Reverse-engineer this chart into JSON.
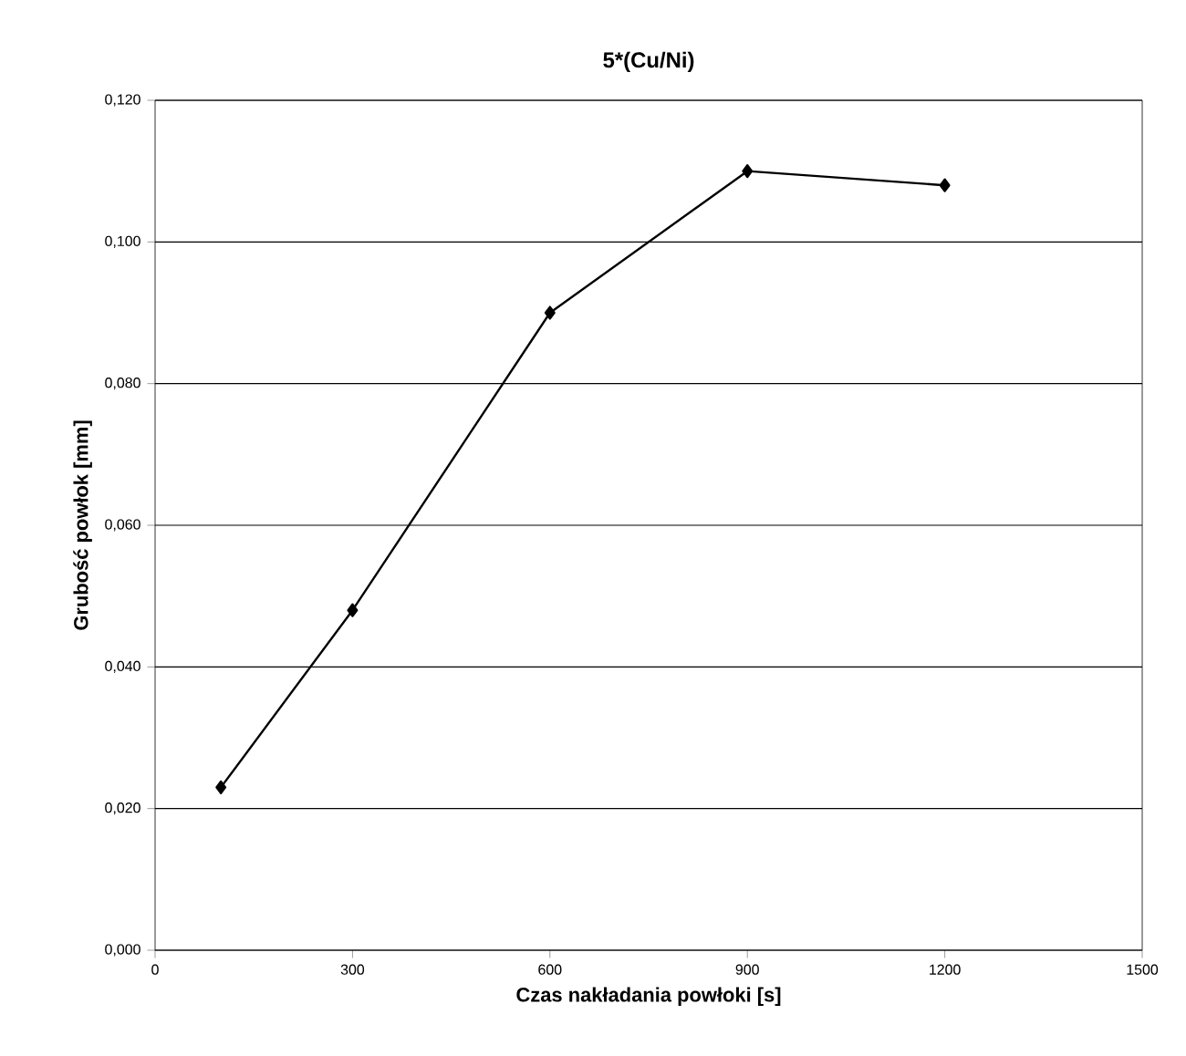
{
  "chart_data": {
    "type": "line",
    "title": "5*(Cu/Ni)",
    "xlabel": "Czas nakładania powłoki [s]",
    "ylabel": "Grubość powłok [mm]",
    "x": [
      100,
      300,
      600,
      900,
      1200
    ],
    "series": [
      {
        "color": "#000000",
        "values": [
          0.023,
          0.048,
          0.09,
          0.11,
          0.108
        ]
      }
    ],
    "xlim": [
      0,
      1500
    ],
    "xticks": [
      0,
      300,
      600,
      900,
      1200,
      1500
    ],
    "ylim": [
      0,
      0.12
    ],
    "yticks": [
      {
        "value": 0,
        "label": "0,000"
      },
      {
        "value": 0.02,
        "label": "0,020"
      },
      {
        "value": 0.04,
        "label": "0,040"
      },
      {
        "value": 0.06,
        "label": "0,060"
      },
      {
        "value": 0.08,
        "label": "0,080"
      },
      {
        "value": 0.1,
        "label": "0,100"
      },
      {
        "value": 0.12,
        "label": "0,120"
      }
    ],
    "grid": "y",
    "marker": "diamond",
    "line_style": "solid"
  }
}
